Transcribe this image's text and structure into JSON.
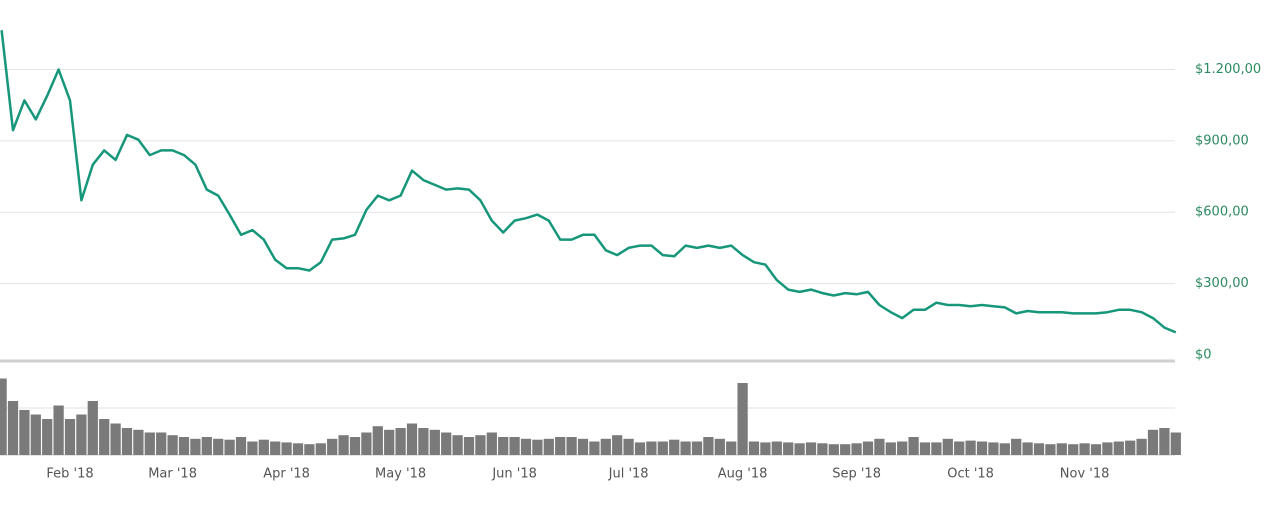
{
  "chart_data": {
    "type": "line",
    "categories": [
      null,
      null,
      null,
      null,
      null,
      null,
      "Feb '18",
      null,
      null,
      null,
      null,
      null,
      null,
      null,
      null,
      "Mar '18",
      null,
      null,
      null,
      null,
      null,
      null,
      null,
      null,
      null,
      "Apr '18",
      null,
      null,
      null,
      null,
      null,
      null,
      null,
      null,
      null,
      "May '18",
      null,
      null,
      null,
      null,
      null,
      null,
      null,
      null,
      null,
      "Jun '18",
      null,
      null,
      null,
      null,
      null,
      null,
      null,
      null,
      null,
      "Jul '18",
      null,
      null,
      null,
      null,
      null,
      null,
      null,
      null,
      null,
      "Aug '18",
      null,
      null,
      null,
      null,
      null,
      null,
      null,
      null,
      null,
      "Sep '18",
      null,
      null,
      null,
      null,
      null,
      null,
      null,
      null,
      null,
      "Oct '18",
      null,
      null,
      null,
      null,
      null,
      null,
      null,
      null,
      null,
      "Nov '18",
      null,
      null,
      null,
      null,
      null,
      null,
      null,
      null
    ],
    "series": [
      {
        "color": "#16967a",
        "values": [
          1365,
          945,
          1070,
          990,
          1090,
          1200,
          1070,
          650,
          800,
          860,
          820,
          925,
          905,
          840,
          860,
          860,
          840,
          800,
          695,
          670,
          590,
          505,
          525,
          485,
          400,
          365,
          365,
          355,
          390,
          485,
          490,
          505,
          610,
          670,
          650,
          670,
          775,
          735,
          715,
          695,
          700,
          695,
          650,
          565,
          515,
          565,
          575,
          590,
          565,
          485,
          485,
          505,
          505,
          440,
          420,
          450,
          460,
          460,
          420,
          415,
          460,
          450,
          460,
          450,
          460,
          420,
          390,
          380,
          315,
          275,
          265,
          275,
          260,
          250,
          260,
          255,
          265,
          210,
          180,
          155,
          190,
          190,
          220,
          210,
          210,
          205,
          210,
          205,
          200,
          175,
          185,
          180,
          180,
          180,
          175,
          175,
          175,
          180,
          190,
          190,
          180,
          155,
          115,
          95
        ]
      },
      {
        "type": "bar",
        "axis": "y2",
        "color": "#7a7a7a",
        "values": [
          85,
          60,
          50,
          45,
          40,
          55,
          40,
          45,
          60,
          40,
          35,
          30,
          28,
          25,
          25,
          22,
          20,
          18,
          20,
          18,
          17,
          20,
          15,
          17,
          15,
          14,
          13,
          12,
          13,
          18,
          22,
          20,
          25,
          32,
          28,
          30,
          35,
          30,
          28,
          25,
          22,
          20,
          22,
          25,
          20,
          20,
          18,
          17,
          18,
          20,
          20,
          18,
          15,
          18,
          22,
          18,
          14,
          15,
          15,
          17,
          15,
          15,
          20,
          18,
          15,
          80,
          15,
          14,
          15,
          14,
          13,
          14,
          13,
          12,
          12,
          13,
          15,
          18,
          14,
          15,
          20,
          14,
          14,
          18,
          15,
          16,
          15,
          14,
          13,
          18,
          14,
          13,
          12,
          13,
          12,
          13,
          12,
          14,
          15,
          16,
          18,
          28,
          30,
          25
        ]
      }
    ],
    "ylim": [
      0,
      1450
    ],
    "yticks": [
      {
        "value": 0,
        "label": "$0"
      },
      {
        "value": 300,
        "label": "$300,00"
      },
      {
        "value": 600,
        "label": "$600,00"
      },
      {
        "value": 900,
        "label": "$900,00"
      },
      {
        "value": 1200,
        "label": "$1.200,00"
      }
    ],
    "y2lim": [
      0,
      100
    ],
    "grid": true
  }
}
